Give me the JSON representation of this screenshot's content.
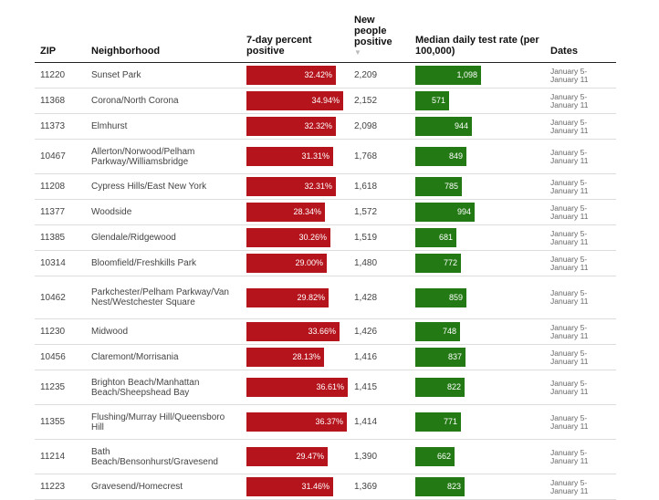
{
  "chart_data": {
    "type": "table",
    "columns": [
      "ZIP",
      "Neighborhood",
      "7-day percent positive",
      "New people positive",
      "Median daily test rate (per 100,000)",
      "Dates"
    ],
    "sorted_column": "New people positive",
    "sort_indicator": "▼",
    "pct_max": 38,
    "rate_max": 1300,
    "rows": [
      {
        "zip": "11220",
        "neighborhood": "Sunset Park",
        "pct": 32.42,
        "pct_label": "32.42%",
        "new_positive": "2,209",
        "rate": 1098,
        "rate_label": "1,098",
        "dates_start": "January 5-",
        "dates_end": "January 11"
      },
      {
        "zip": "11368",
        "neighborhood": "Corona/North Corona",
        "pct": 34.94,
        "pct_label": "34.94%",
        "new_positive": "2,152",
        "rate": 571,
        "rate_label": "571",
        "dates_start": "January 5-",
        "dates_end": "January 11"
      },
      {
        "zip": "11373",
        "neighborhood": "Elmhurst",
        "pct": 32.32,
        "pct_label": "32.32%",
        "new_positive": "2,098",
        "rate": 944,
        "rate_label": "944",
        "dates_start": "January 5-",
        "dates_end": "January 11"
      },
      {
        "zip": "10467",
        "neighborhood": "Allerton/Norwood/Pelham Parkway/Williamsbridge",
        "pct": 31.31,
        "pct_label": "31.31%",
        "new_positive": "1,768",
        "rate": 849,
        "rate_label": "849",
        "dates_start": "January 5-",
        "dates_end": "January 11"
      },
      {
        "zip": "11208",
        "neighborhood": "Cypress Hills/East New York",
        "pct": 32.31,
        "pct_label": "32.31%",
        "new_positive": "1,618",
        "rate": 785,
        "rate_label": "785",
        "dates_start": "January 5-",
        "dates_end": "January 11"
      },
      {
        "zip": "11377",
        "neighborhood": "Woodside",
        "pct": 28.34,
        "pct_label": "28.34%",
        "new_positive": "1,572",
        "rate": 994,
        "rate_label": "994",
        "dates_start": "January 5-",
        "dates_end": "January 11"
      },
      {
        "zip": "11385",
        "neighborhood": "Glendale/Ridgewood",
        "pct": 30.26,
        "pct_label": "30.26%",
        "new_positive": "1,519",
        "rate": 681,
        "rate_label": "681",
        "dates_start": "January 5-",
        "dates_end": "January 11"
      },
      {
        "zip": "10314",
        "neighborhood": "Bloomfield/Freshkills Park",
        "pct": 29.0,
        "pct_label": "29.00%",
        "new_positive": "1,480",
        "rate": 772,
        "rate_label": "772",
        "dates_start": "January 5-",
        "dates_end": "January 11"
      },
      {
        "zip": "10462",
        "neighborhood": "Parkchester/Pelham Parkway/Van Nest/Westchester Square",
        "pct": 29.82,
        "pct_label": "29.82%",
        "new_positive": "1,428",
        "rate": 859,
        "rate_label": "859",
        "dates_start": "January 5-",
        "dates_end": "January 11"
      },
      {
        "zip": "11230",
        "neighborhood": "Midwood",
        "pct": 33.66,
        "pct_label": "33.66%",
        "new_positive": "1,426",
        "rate": 748,
        "rate_label": "748",
        "dates_start": "January 5-",
        "dates_end": "January 11"
      },
      {
        "zip": "10456",
        "neighborhood": "Claremont/Morrisania",
        "pct": 28.13,
        "pct_label": "28.13%",
        "new_positive": "1,416",
        "rate": 837,
        "rate_label": "837",
        "dates_start": "January 5-",
        "dates_end": "January 11"
      },
      {
        "zip": "11235",
        "neighborhood": "Brighton Beach/Manhattan Beach/Sheepshead Bay",
        "pct": 36.61,
        "pct_label": "36.61%",
        "new_positive": "1,415",
        "rate": 822,
        "rate_label": "822",
        "dates_start": "January 5-",
        "dates_end": "January 11"
      },
      {
        "zip": "11355",
        "neighborhood": "Flushing/Murray Hill/Queensboro Hill",
        "pct": 36.37,
        "pct_label": "36.37%",
        "new_positive": "1,414",
        "rate": 771,
        "rate_label": "771",
        "dates_start": "January 5-",
        "dates_end": "January 11"
      },
      {
        "zip": "11214",
        "neighborhood": "Bath Beach/Bensonhurst/Gravesend",
        "pct": 29.47,
        "pct_label": "29.47%",
        "new_positive": "1,390",
        "rate": 662,
        "rate_label": "662",
        "dates_start": "January 5-",
        "dates_end": "January 11"
      },
      {
        "zip": "11223",
        "neighborhood": "Gravesend/Homecrest",
        "pct": 31.46,
        "pct_label": "31.46%",
        "new_positive": "1,369",
        "rate": 823,
        "rate_label": "823",
        "dates_start": "January 5-",
        "dates_end": "January 11"
      }
    ]
  },
  "colors": {
    "pct_bar": "#b5141c",
    "rate_bar": "#237a14"
  }
}
